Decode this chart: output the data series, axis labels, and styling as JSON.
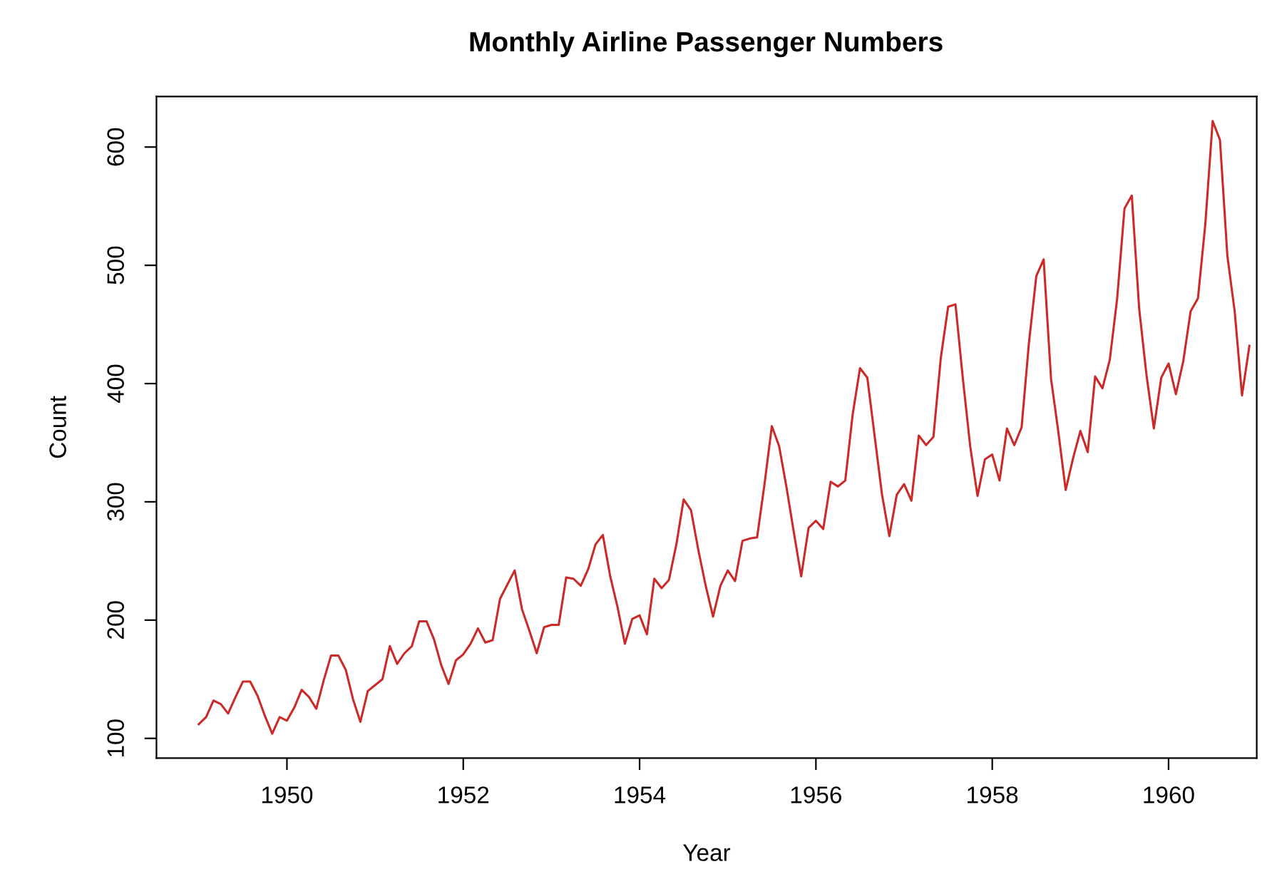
{
  "chart_data": {
    "type": "line",
    "title": "Monthly Airline Passenger Numbers",
    "xlabel": "Year",
    "ylabel": "Count",
    "xlim": [
      1948.52,
      1961.0
    ],
    "xticks": [
      1950,
      1952,
      1954,
      1956,
      1958,
      1960
    ],
    "ylim": [
      83.3,
      642.7
    ],
    "yticks": [
      100,
      200,
      300,
      400,
      500,
      600
    ],
    "grid": false,
    "marker": "none",
    "line_style": "solid",
    "series": [
      {
        "color": "#cc2929",
        "x": [
          1949.0,
          1949.083,
          1949.167,
          1949.25,
          1949.333,
          1949.417,
          1949.5,
          1949.583,
          1949.667,
          1949.75,
          1949.833,
          1949.917,
          1950.0,
          1950.083,
          1950.167,
          1950.25,
          1950.333,
          1950.417,
          1950.5,
          1950.583,
          1950.667,
          1950.75,
          1950.833,
          1950.917,
          1951.0,
          1951.083,
          1951.167,
          1951.25,
          1951.333,
          1951.417,
          1951.5,
          1951.583,
          1951.667,
          1951.75,
          1951.833,
          1951.917,
          1952.0,
          1952.083,
          1952.167,
          1952.25,
          1952.333,
          1952.417,
          1952.5,
          1952.583,
          1952.667,
          1952.75,
          1952.833,
          1952.917,
          1953.0,
          1953.083,
          1953.167,
          1953.25,
          1953.333,
          1953.417,
          1953.5,
          1953.583,
          1953.667,
          1953.75,
          1953.833,
          1953.917,
          1954.0,
          1954.083,
          1954.167,
          1954.25,
          1954.333,
          1954.417,
          1954.5,
          1954.583,
          1954.667,
          1954.75,
          1954.833,
          1954.917,
          1955.0,
          1955.083,
          1955.167,
          1955.25,
          1955.333,
          1955.417,
          1955.5,
          1955.583,
          1955.667,
          1955.75,
          1955.833,
          1955.917,
          1956.0,
          1956.083,
          1956.167,
          1956.25,
          1956.333,
          1956.417,
          1956.5,
          1956.583,
          1956.667,
          1956.75,
          1956.833,
          1956.917,
          1957.0,
          1957.083,
          1957.167,
          1957.25,
          1957.333,
          1957.417,
          1957.5,
          1957.583,
          1957.667,
          1957.75,
          1957.833,
          1957.917,
          1958.0,
          1958.083,
          1958.167,
          1958.25,
          1958.333,
          1958.417,
          1958.5,
          1958.583,
          1958.667,
          1958.75,
          1958.833,
          1958.917,
          1959.0,
          1959.083,
          1959.167,
          1959.25,
          1959.333,
          1959.417,
          1959.5,
          1959.583,
          1959.667,
          1959.75,
          1959.833,
          1959.917,
          1960.0,
          1960.083,
          1960.167,
          1960.25,
          1960.333,
          1960.417,
          1960.5,
          1960.583,
          1960.667,
          1960.75,
          1960.833,
          1960.917
        ],
        "values": [
          112,
          118,
          132,
          129,
          121,
          135,
          148,
          148,
          136,
          119,
          104,
          118,
          115,
          126,
          141,
          135,
          125,
          149,
          170,
          170,
          158,
          133,
          114,
          140,
          145,
          150,
          178,
          163,
          172,
          178,
          199,
          199,
          184,
          162,
          146,
          166,
          171,
          180,
          193,
          181,
          183,
          218,
          230,
          242,
          209,
          191,
          172,
          194,
          196,
          196,
          236,
          235,
          229,
          243,
          264,
          272,
          237,
          211,
          180,
          201,
          204,
          188,
          235,
          227,
          234,
          264,
          302,
          293,
          259,
          229,
          203,
          229,
          242,
          233,
          267,
          269,
          270,
          315,
          364,
          347,
          312,
          274,
          237,
          278,
          284,
          277,
          317,
          313,
          318,
          374,
          413,
          405,
          355,
          306,
          271,
          306,
          315,
          301,
          356,
          348,
          355,
          422,
          465,
          467,
          404,
          347,
          305,
          336,
          340,
          318,
          362,
          348,
          363,
          435,
          491,
          505,
          404,
          359,
          310,
          337,
          360,
          342,
          406,
          396,
          420,
          472,
          548,
          559,
          463,
          407,
          362,
          405,
          417,
          391,
          419,
          461,
          472,
          535,
          622,
          606,
          508,
          461,
          390,
          432
        ]
      }
    ]
  }
}
